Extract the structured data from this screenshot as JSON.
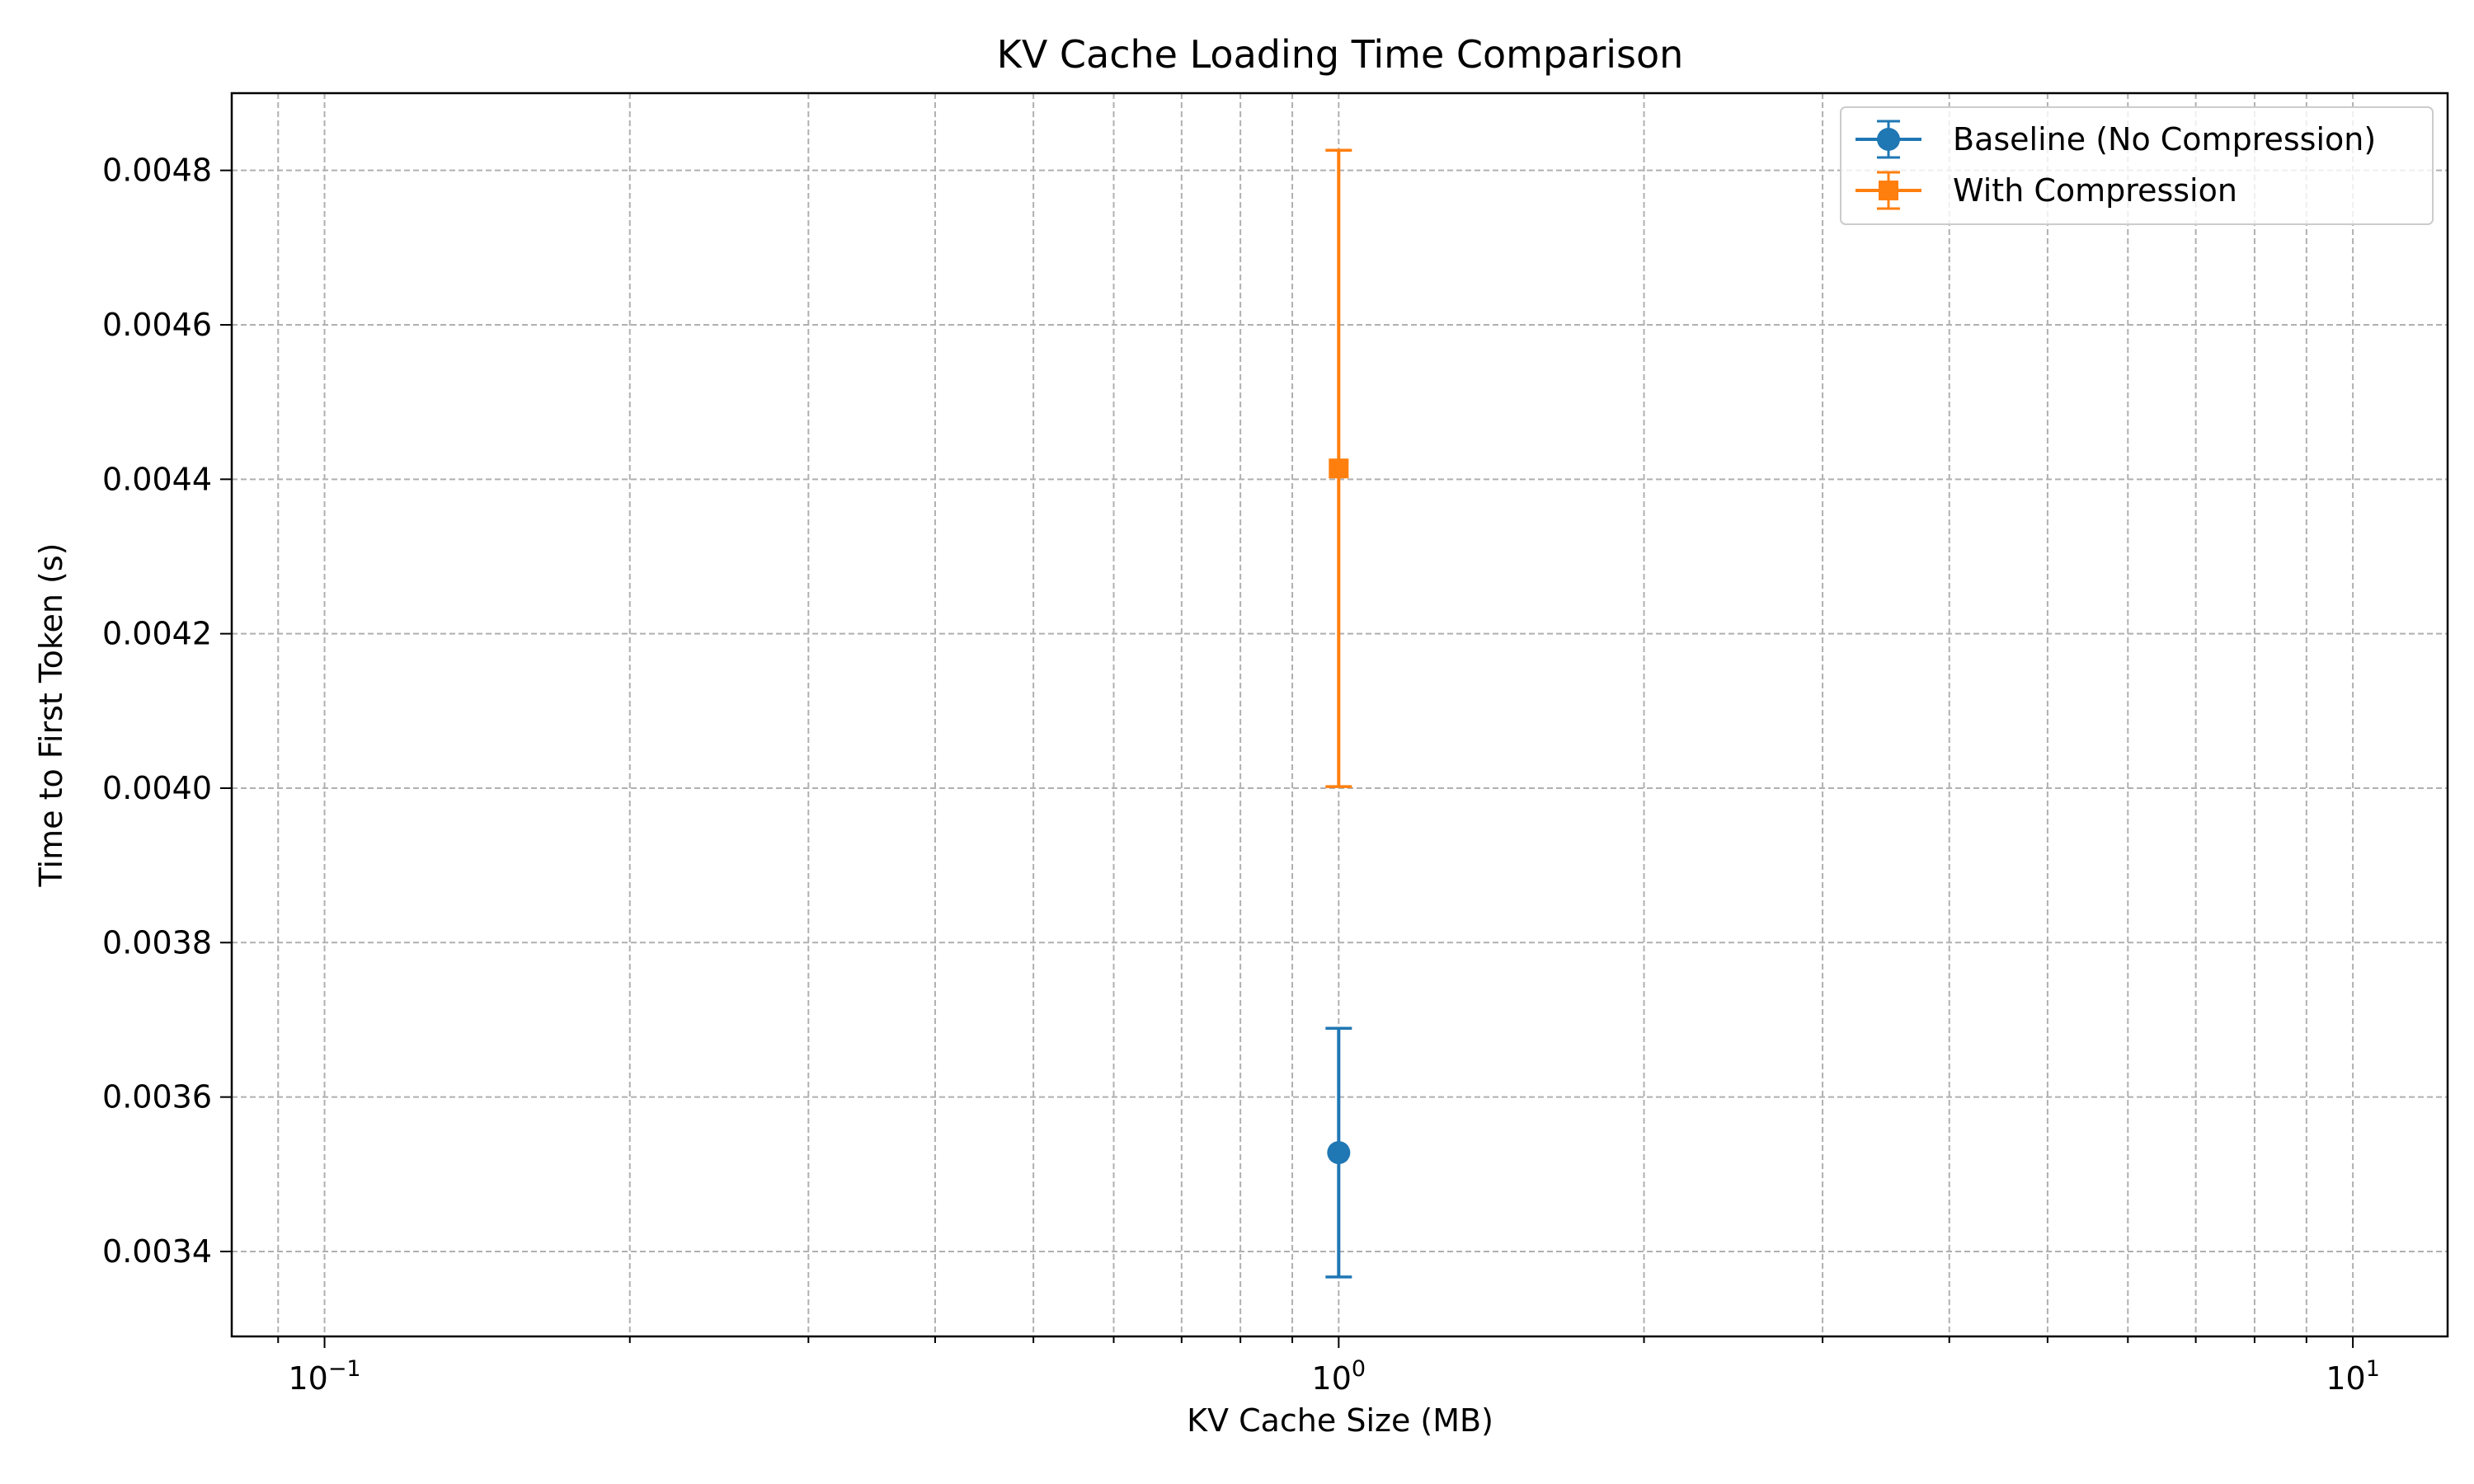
{
  "chart_data": {
    "type": "scatter",
    "title": "KV Cache Loading Time Comparison",
    "xlabel": "KV Cache Size (MB)",
    "ylabel": "Time to First Token (s)",
    "xscale": "log",
    "xlim": [
      0.081,
      12.4
    ],
    "ylim": [
      0.00329,
      0.0049
    ],
    "xticks": [
      {
        "value": 0.1,
        "base": "10",
        "exp": "−1"
      },
      {
        "value": 1,
        "base": "10",
        "exp": "0"
      },
      {
        "value": 10,
        "base": "10",
        "exp": "1"
      }
    ],
    "yticks": [
      0.0034,
      0.0036,
      0.0038,
      0.004,
      0.0042,
      0.0044,
      0.0046,
      0.0048
    ],
    "ytick_labels": [
      "0.0034",
      "0.0036",
      "0.0038",
      "0.0040",
      "0.0042",
      "0.0044",
      "0.0046",
      "0.0048"
    ],
    "grid": true,
    "legend_position": "top-right",
    "series": [
      {
        "name": "Baseline (No Compression)",
        "marker": "circle",
        "color": "#1f77b4",
        "x": [
          1.0
        ],
        "y": [
          0.003528
        ],
        "yerr_low": [
          0.003367
        ],
        "yerr_high": [
          0.003689
        ]
      },
      {
        "name": "With Compression",
        "marker": "square",
        "color": "#ff7f0e",
        "x": [
          1.0
        ],
        "y": [
          0.004414
        ],
        "yerr_low": [
          0.004002
        ],
        "yerr_high": [
          0.004826
        ]
      }
    ]
  }
}
